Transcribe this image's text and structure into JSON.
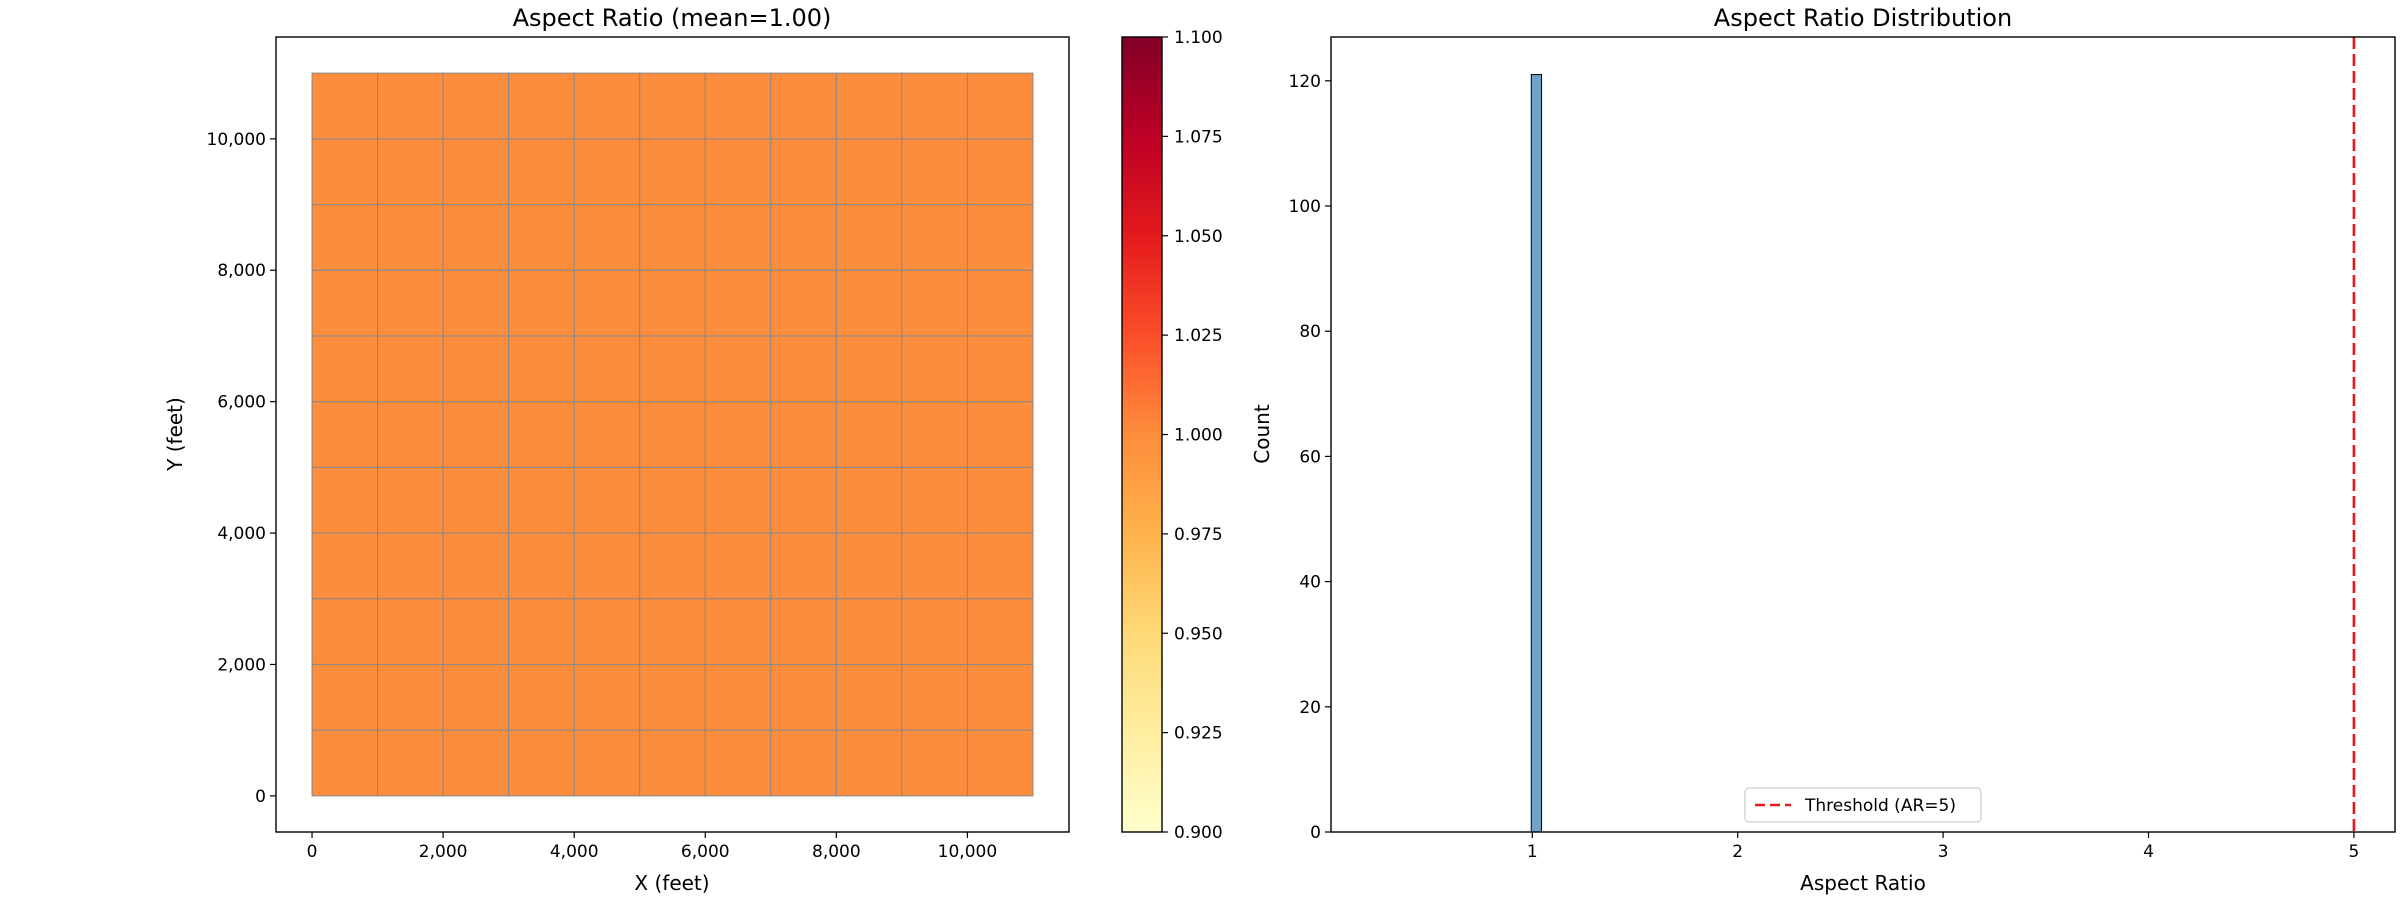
{
  "chart_data": [
    {
      "type": "heatmap",
      "title": "Aspect Ratio (mean=1.00)",
      "xlabel": "X (feet)",
      "ylabel": "Y (feet)",
      "xlim": [
        -550,
        11550
      ],
      "ylim": [
        -550,
        11550
      ],
      "xticks": [
        0,
        2000,
        4000,
        6000,
        8000,
        10000
      ],
      "xtick_labels": [
        "0",
        "2,000",
        "4,000",
        "6,000",
        "8,000",
        "10,000"
      ],
      "yticks": [
        0,
        2000,
        4000,
        6000,
        8000,
        10000
      ],
      "ytick_labels": [
        "0",
        "2,000",
        "4,000",
        "6,000",
        "8,000",
        "10,000"
      ],
      "grid": {
        "nx": 11,
        "ny": 11,
        "cell_size": 1000,
        "x0": 0,
        "y0": 0,
        "values_uniform": 1.0,
        "cell_color": "#fc8d3c",
        "edge_color": "#888888"
      },
      "colorbar": {
        "range": [
          0.9,
          1.1
        ],
        "ticks": [
          0.9,
          0.925,
          0.95,
          0.975,
          1.0,
          1.025,
          1.05,
          1.075,
          1.1
        ],
        "tick_labels": [
          "0.900",
          "0.925",
          "0.950",
          "0.975",
          "1.000",
          "1.025",
          "1.050",
          "1.075",
          "1.100"
        ],
        "colormap": [
          "#ffffcc",
          "#ffeda0",
          "#fed976",
          "#feb24c",
          "#fd8d3c",
          "#fc4e2a",
          "#e31a1c",
          "#bd0026",
          "#800026"
        ]
      }
    },
    {
      "type": "bar",
      "title": "Aspect Ratio Distribution",
      "xlabel": "Aspect Ratio",
      "ylabel": "Count",
      "xlim": [
        0.02,
        5.2
      ],
      "ylim": [
        0,
        127
      ],
      "xticks": [
        1,
        2,
        3,
        4,
        5
      ],
      "xtick_labels": [
        "1",
        "2",
        "3",
        "4",
        "5"
      ],
      "yticks": [
        0,
        20,
        40,
        60,
        80,
        100,
        120
      ],
      "ytick_labels": [
        "0",
        "20",
        "40",
        "60",
        "80",
        "100",
        "120"
      ],
      "bins": [
        {
          "x0": 0.995,
          "x1": 1.045,
          "count": 121
        }
      ],
      "bar_color": "#6fa3c9",
      "threshold": {
        "x": 5,
        "label": "Threshold (AR=5)",
        "color": "#e41a1c"
      },
      "legend_position": "bottom-center"
    }
  ]
}
